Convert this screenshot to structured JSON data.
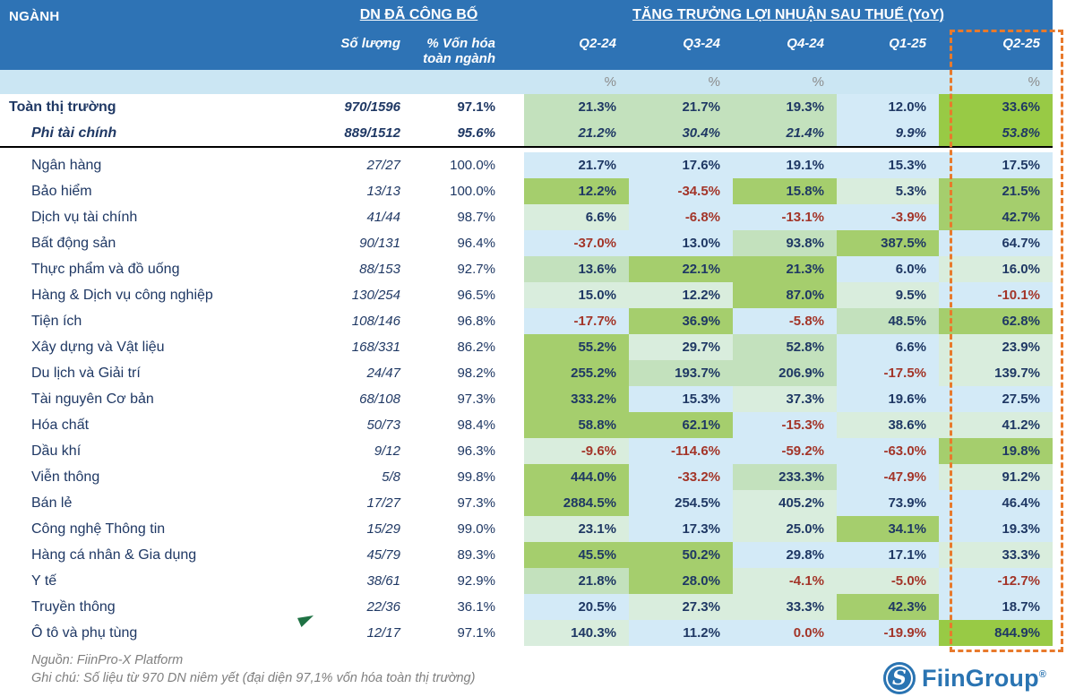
{
  "colors": {
    "header_bg": "#2E73B5",
    "unit_row_bg": "#CBE6F3",
    "navy_text": "#1F3864",
    "negative_text": "#A33529",
    "dashed_highlight": "#E87A2C",
    "flag_green": "#1F7244",
    "logo_blue": "#2A74B2",
    "shades": {
      "B": "#D3EAF7",
      "P": "#D9EDDD",
      "L": "#C3E1BD",
      "M": "#A5CE6D",
      "S": "#98CA45"
    }
  },
  "header": {
    "industry": "NGÀNH",
    "announced_group": "DN ĐÃ CÔNG BỐ",
    "growth_group": "TĂNG TRƯỞNG LỢI NHUẬN SAU THUẾ (YoY)",
    "col_count": "Số lượng",
    "col_cap_line1": "% Vốn hóa",
    "col_cap_line2": "toàn ngành"
  },
  "footer": {
    "source": "Nguồn: FiinPro-X Platform",
    "note": "Ghi chú: Số liệu từ 970 DN niêm yết (đại diện 97,1% vốn hóa toàn thị trường)"
  },
  "logo": {
    "monogram": "S",
    "text": "FiinGroup",
    "registered": "®"
  },
  "chart_data": {
    "type": "table",
    "title": "TĂNG TRƯỞNG LỢI NHUẬN SAU THUẾ (YoY)",
    "columns": [
      "NGÀNH",
      "Số lượng",
      "% Vốn hóa toàn ngành",
      "Q2-24",
      "Q3-24",
      "Q4-24",
      "Q1-25",
      "Q2-25"
    ],
    "quarters": [
      "Q2-24",
      "Q3-24",
      "Q4-24",
      "Q1-25",
      "Q2-25"
    ],
    "unit_row": [
      "%",
      "%",
      "%",
      "",
      "%"
    ],
    "highlighted_column": "Q2-25",
    "summary_rows": [
      {
        "name": "Toàn thị trường",
        "count": "970/1596",
        "cap": "97.1%",
        "values": [
          "21.3%",
          "21.7%",
          "19.3%",
          "12.0%",
          "33.6%"
        ],
        "shades": [
          "L",
          "L",
          "L",
          "B",
          "S"
        ]
      },
      {
        "name": "Phi tài chính",
        "count": "889/1512",
        "cap": "95.6%",
        "values": [
          "21.2%",
          "30.4%",
          "21.4%",
          "9.9%",
          "53.8%"
        ],
        "shades": [
          "L",
          "L",
          "L",
          "B",
          "S"
        ]
      }
    ],
    "rows": [
      {
        "name": "Ngân hàng",
        "count": "27/27",
        "cap": "100.0%",
        "values": [
          "21.7%",
          "17.6%",
          "19.1%",
          "15.3%",
          "17.5%"
        ],
        "shades": [
          "B",
          "B",
          "B",
          "B",
          "B"
        ]
      },
      {
        "name": "Bảo hiểm",
        "count": "13/13",
        "cap": "100.0%",
        "values": [
          "12.2%",
          "-34.5%",
          "15.8%",
          "5.3%",
          "21.5%"
        ],
        "shades": [
          "M",
          "B",
          "M",
          "P",
          "M"
        ]
      },
      {
        "name": "Dịch vụ tài chính",
        "count": "41/44",
        "cap": "98.7%",
        "values": [
          "6.6%",
          "-6.8%",
          "-13.1%",
          "-3.9%",
          "42.7%"
        ],
        "shades": [
          "P",
          "B",
          "B",
          "B",
          "M"
        ]
      },
      {
        "name": "Bất động sản",
        "count": "90/131",
        "cap": "96.4%",
        "values": [
          "-37.0%",
          "13.0%",
          "93.8%",
          "387.5%",
          "64.7%"
        ],
        "shades": [
          "B",
          "B",
          "L",
          "M",
          "B"
        ]
      },
      {
        "name": "Thực phẩm và đồ uống",
        "count": "88/153",
        "cap": "92.7%",
        "values": [
          "13.6%",
          "22.1%",
          "21.3%",
          "6.0%",
          "16.0%"
        ],
        "shades": [
          "L",
          "M",
          "M",
          "B",
          "P"
        ]
      },
      {
        "name": "Hàng & Dịch vụ công nghiệp",
        "count": "130/254",
        "cap": "96.5%",
        "values": [
          "15.0%",
          "12.2%",
          "87.0%",
          "9.5%",
          "-10.1%"
        ],
        "shades": [
          "P",
          "P",
          "M",
          "P",
          "B"
        ]
      },
      {
        "name": "Tiện ích",
        "count": "108/146",
        "cap": "96.8%",
        "values": [
          "-17.7%",
          "36.9%",
          "-5.8%",
          "48.5%",
          "62.8%"
        ],
        "shades": [
          "B",
          "M",
          "B",
          "L",
          "M"
        ]
      },
      {
        "name": "Xây dựng và Vật liệu",
        "count": "168/331",
        "cap": "86.2%",
        "values": [
          "55.2%",
          "29.7%",
          "52.8%",
          "6.6%",
          "23.9%"
        ],
        "shades": [
          "M",
          "P",
          "L",
          "B",
          "P"
        ]
      },
      {
        "name": "Du lịch và Giải trí",
        "count": "24/47",
        "cap": "98.2%",
        "values": [
          "255.2%",
          "193.7%",
          "206.9%",
          "-17.5%",
          "139.7%"
        ],
        "shades": [
          "M",
          "L",
          "L",
          "B",
          "P"
        ]
      },
      {
        "name": "Tài nguyên Cơ bản",
        "count": "68/108",
        "cap": "97.3%",
        "values": [
          "333.2%",
          "15.3%",
          "37.3%",
          "19.6%",
          "27.5%"
        ],
        "shades": [
          "M",
          "B",
          "P",
          "B",
          "B"
        ]
      },
      {
        "name": "Hóa chất",
        "count": "50/73",
        "cap": "98.4%",
        "values": [
          "58.8%",
          "62.1%",
          "-15.3%",
          "38.6%",
          "41.2%"
        ],
        "shades": [
          "M",
          "M",
          "B",
          "P",
          "P"
        ]
      },
      {
        "name": "Dầu khí",
        "count": "9/12",
        "cap": "96.3%",
        "values": [
          "-9.6%",
          "-114.6%",
          "-59.2%",
          "-63.0%",
          "19.8%"
        ],
        "shades": [
          "P",
          "B",
          "B",
          "B",
          "M"
        ]
      },
      {
        "name": "Viễn thông",
        "count": "5/8",
        "cap": "99.8%",
        "values": [
          "444.0%",
          "-33.2%",
          "233.3%",
          "-47.9%",
          "91.2%"
        ],
        "shades": [
          "M",
          "B",
          "L",
          "B",
          "P"
        ]
      },
      {
        "name": "Bán lẻ",
        "count": "17/27",
        "cap": "97.3%",
        "values": [
          "2884.5%",
          "254.5%",
          "405.2%",
          "73.9%",
          "46.4%"
        ],
        "shades": [
          "M",
          "B",
          "P",
          "B",
          "B"
        ]
      },
      {
        "name": "Công nghệ Thông tin",
        "count": "15/29",
        "cap": "99.0%",
        "values": [
          "23.1%",
          "17.3%",
          "25.0%",
          "34.1%",
          "19.3%"
        ],
        "shades": [
          "P",
          "B",
          "P",
          "M",
          "B"
        ]
      },
      {
        "name": "Hàng cá nhân & Gia dụng",
        "count": "45/79",
        "cap": "89.3%",
        "values": [
          "45.5%",
          "50.2%",
          "29.8%",
          "17.1%",
          "33.3%"
        ],
        "shades": [
          "M",
          "M",
          "B",
          "B",
          "P"
        ]
      },
      {
        "name": "Y tế",
        "count": "38/61",
        "cap": "92.9%",
        "values": [
          "21.8%",
          "28.0%",
          "-4.1%",
          "-5.0%",
          "-12.7%"
        ],
        "shades": [
          "L",
          "M",
          "P",
          "P",
          "B"
        ]
      },
      {
        "name": "Truyền thông",
        "count": "22/36",
        "cap": "36.1%",
        "values": [
          "20.5%",
          "27.3%",
          "33.3%",
          "42.3%",
          "18.7%"
        ],
        "shades": [
          "B",
          "P",
          "P",
          "M",
          "B"
        ]
      },
      {
        "name": "Ô tô và phụ tùng",
        "count": "12/17",
        "cap": "97.1%",
        "values": [
          "140.3%",
          "11.2%",
          "0.0%",
          "-19.9%",
          "844.9%"
        ],
        "shades": [
          "P",
          "B",
          "B",
          "B",
          "S"
        ]
      }
    ]
  }
}
